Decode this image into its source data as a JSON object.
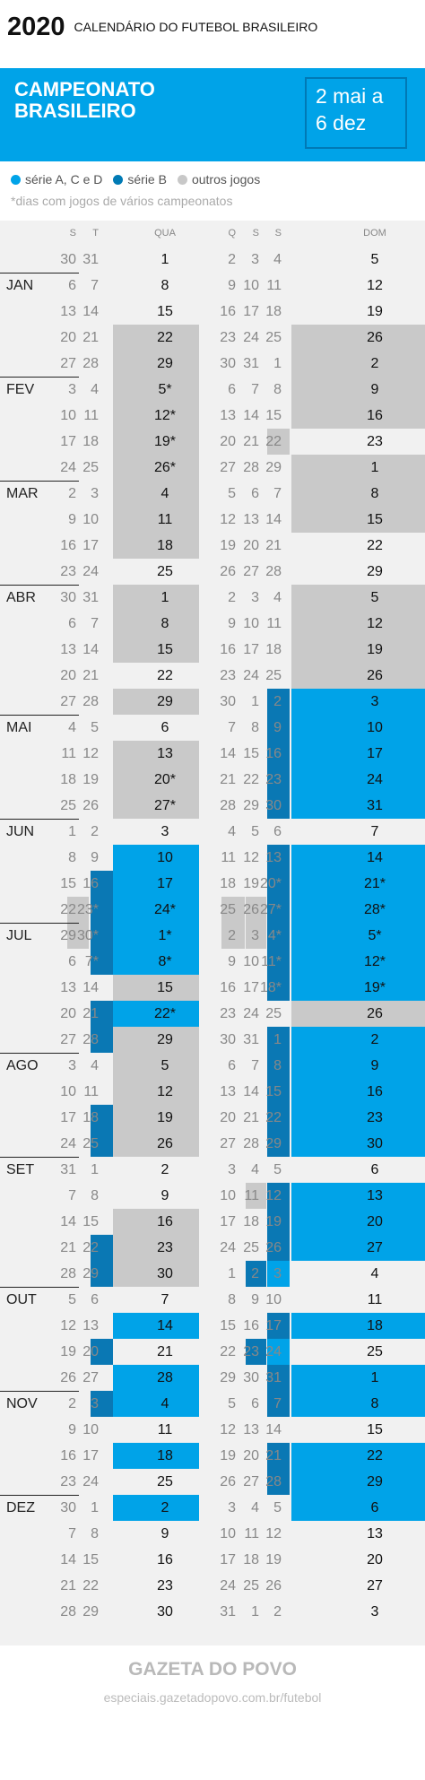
{
  "header": {
    "year": "2020",
    "title": "CALENDÁRIO DO FUTEBOL BRASILEIRO"
  },
  "banner": {
    "title": "CAMPEONATO\nBRASILEIRO",
    "dates": "2 mai a\n6 dez"
  },
  "legend": {
    "items": [
      {
        "label": "série A, C e D",
        "color": "#00a3e8"
      },
      {
        "label": "série B",
        "color": "#007bb5"
      },
      {
        "label": "outros jogos",
        "color": "#c8c8c8"
      }
    ],
    "note": "*dias com jogos de vários campeonatos"
  },
  "colors": {
    "seriesACD": "#00a3e8",
    "seriesB": "#0a78b4",
    "others": "#c9c9c9",
    "grid": "#f1f1f1"
  },
  "day_headers": [
    "S",
    "T",
    "QUA",
    "Q",
    "S",
    "S",
    "DOM"
  ],
  "months": [
    "JAN",
    "FEV",
    "MAR",
    "ABR",
    "MAI",
    "JUN",
    "JUL",
    "AGO",
    "SET",
    "OUT",
    "NOV",
    "DEZ"
  ],
  "weeks": [
    {
      "d": [
        "30",
        "31",
        "1",
        "2",
        "3",
        "4",
        "5"
      ]
    },
    {
      "m": "JAN",
      "d": [
        "6",
        "7",
        "8",
        "9",
        "10",
        "11",
        "12"
      ]
    },
    {
      "d": [
        "13",
        "14",
        "15",
        "16",
        "17",
        "18",
        "19"
      ]
    },
    {
      "d": [
        "20",
        "21",
        "22",
        "23",
        "24",
        "25",
        "26"
      ],
      "o": [
        2,
        6
      ]
    },
    {
      "d": [
        "27",
        "28",
        "29",
        "30",
        "31",
        "1",
        "2"
      ],
      "o": [
        2,
        6
      ]
    },
    {
      "m": "FEV",
      "d": [
        "3",
        "4",
        "5*",
        "6",
        "7",
        "8",
        "9"
      ],
      "o": [
        2,
        6
      ]
    },
    {
      "d": [
        "10",
        "11",
        "12*",
        "13",
        "14",
        "15",
        "16"
      ],
      "o": [
        2,
        6
      ]
    },
    {
      "d": [
        "17",
        "18",
        "19*",
        "20",
        "21",
        "22",
        "23"
      ],
      "o": [
        2,
        5
      ]
    },
    {
      "d": [
        "24",
        "25",
        "26*",
        "27",
        "28",
        "29",
        "1"
      ],
      "o": [
        2,
        6
      ]
    },
    {
      "m": "MAR",
      "d": [
        "2",
        "3",
        "4",
        "5",
        "6",
        "7",
        "8"
      ],
      "o": [
        2,
        6
      ]
    },
    {
      "d": [
        "9",
        "10",
        "11",
        "12",
        "13",
        "14",
        "15"
      ],
      "o": [
        2,
        6
      ]
    },
    {
      "d": [
        "16",
        "17",
        "18",
        "19",
        "20",
        "21",
        "22"
      ],
      "o": [
        2
      ]
    },
    {
      "d": [
        "23",
        "24",
        "25",
        "26",
        "27",
        "28",
        "29"
      ]
    },
    {
      "m": "ABR",
      "d": [
        "30",
        "31",
        "1",
        "2",
        "3",
        "4",
        "5"
      ],
      "o": [
        2,
        6
      ]
    },
    {
      "d": [
        "6",
        "7",
        "8",
        "9",
        "10",
        "11",
        "12"
      ],
      "o": [
        2,
        6
      ]
    },
    {
      "d": [
        "13",
        "14",
        "15",
        "16",
        "17",
        "18",
        "19"
      ],
      "o": [
        2,
        6
      ]
    },
    {
      "d": [
        "20",
        "21",
        "22",
        "23",
        "24",
        "25",
        "26"
      ],
      "o": [
        6
      ]
    },
    {
      "d": [
        "27",
        "28",
        "29",
        "30",
        "1",
        "2",
        "3"
      ],
      "o": [
        2
      ],
      "b": [
        5
      ],
      "a": [
        6
      ]
    },
    {
      "m": "MAI",
      "d": [
        "4",
        "5",
        "6",
        "7",
        "8",
        "9",
        "10"
      ],
      "b": [
        5
      ],
      "a": [
        6
      ]
    },
    {
      "d": [
        "11",
        "12",
        "13",
        "14",
        "15",
        "16",
        "17"
      ],
      "o": [
        2
      ],
      "b": [
        5
      ],
      "a": [
        6
      ]
    },
    {
      "d": [
        "18",
        "19",
        "20*",
        "21",
        "22",
        "23",
        "24"
      ],
      "o": [
        2
      ],
      "b": [
        5
      ],
      "a": [
        6
      ]
    },
    {
      "d": [
        "25",
        "26",
        "27*",
        "28",
        "29",
        "30",
        "31"
      ],
      "o": [
        2
      ],
      "b": [
        5
      ],
      "a": [
        6
      ]
    },
    {
      "m": "JUN",
      "d": [
        "1",
        "2",
        "3",
        "4",
        "5",
        "6",
        "7"
      ]
    },
    {
      "d": [
        "8",
        "9",
        "10",
        "11",
        "12",
        "13",
        "14"
      ],
      "b": [
        5
      ],
      "a": [
        2,
        6
      ]
    },
    {
      "d": [
        "15",
        "16",
        "17",
        "18",
        "19",
        "20*",
        "21*"
      ],
      "b": [
        1,
        5
      ],
      "a": [
        2,
        6
      ]
    },
    {
      "d": [
        "22",
        "23*",
        "24*",
        "25",
        "26",
        "27*",
        "28*"
      ],
      "o": [
        0,
        3,
        4
      ],
      "b": [
        1,
        5
      ],
      "a": [
        2,
        6
      ]
    },
    {
      "m": "JUL",
      "d": [
        "29",
        "30*",
        "1*",
        "2",
        "3",
        "4*",
        "5*"
      ],
      "o": [
        0,
        3,
        4
      ],
      "b": [
        1,
        5
      ],
      "a": [
        2,
        6
      ]
    },
    {
      "d": [
        "6",
        "7*",
        "8*",
        "9",
        "10",
        "11*",
        "12*"
      ],
      "b": [
        1,
        5
      ],
      "a": [
        2,
        6
      ]
    },
    {
      "d": [
        "13",
        "14",
        "15",
        "16",
        "17",
        "18*",
        "19*"
      ],
      "o": [
        2
      ],
      "b": [
        5
      ],
      "a": [
        6
      ]
    },
    {
      "d": [
        "20",
        "21",
        "22*",
        "23",
        "24",
        "25",
        "26"
      ],
      "b": [
        1
      ],
      "a": [
        2
      ],
      "o": [
        6
      ]
    },
    {
      "d": [
        "27",
        "28",
        "29",
        "30",
        "31",
        "1",
        "2"
      ],
      "o": [
        2
      ],
      "b": [
        1,
        5
      ],
      "a": [
        6
      ]
    },
    {
      "m": "AGO",
      "d": [
        "3",
        "4",
        "5",
        "6",
        "7",
        "8",
        "9"
      ],
      "o": [
        2
      ],
      "b": [
        5
      ],
      "a": [
        6
      ]
    },
    {
      "d": [
        "10",
        "11",
        "12",
        "13",
        "14",
        "15",
        "16"
      ],
      "o": [
        2
      ],
      "b": [
        5
      ],
      "a": [
        6
      ]
    },
    {
      "d": [
        "17",
        "18",
        "19",
        "20",
        "21",
        "22",
        "23"
      ],
      "o": [
        2
      ],
      "b": [
        1,
        5
      ],
      "a": [
        6
      ]
    },
    {
      "d": [
        "24",
        "25",
        "26",
        "27",
        "28",
        "29",
        "30"
      ],
      "o": [
        2
      ],
      "b": [
        1,
        5
      ],
      "a": [
        6
      ]
    },
    {
      "m": "SET",
      "d": [
        "31",
        "1",
        "2",
        "3",
        "4",
        "5",
        "6"
      ]
    },
    {
      "d": [
        "7",
        "8",
        "9",
        "10",
        "11",
        "12",
        "13"
      ],
      "o": [
        4
      ],
      "b": [
        5
      ],
      "a": [
        6
      ]
    },
    {
      "d": [
        "14",
        "15",
        "16",
        "17",
        "18",
        "19",
        "20"
      ],
      "o": [
        2
      ],
      "b": [
        5
      ],
      "a": [
        6
      ]
    },
    {
      "d": [
        "21",
        "22",
        "23",
        "24",
        "25",
        "26",
        "27"
      ],
      "o": [
        2
      ],
      "b": [
        1,
        5
      ],
      "a": [
        6
      ]
    },
    {
      "d": [
        "28",
        "29",
        "30",
        "1",
        "2",
        "3",
        "4"
      ],
      "o": [
        2
      ],
      "b": [
        1,
        4
      ],
      "a": [
        5
      ]
    },
    {
      "m": "OUT",
      "d": [
        "5",
        "6",
        "7",
        "8",
        "9",
        "10",
        "11"
      ]
    },
    {
      "d": [
        "12",
        "13",
        "14",
        "15",
        "16",
        "17",
        "18"
      ],
      "a": [
        2,
        6
      ],
      "b": [
        5
      ]
    },
    {
      "d": [
        "19",
        "20",
        "21",
        "22",
        "23",
        "24",
        "25"
      ],
      "b": [
        1,
        4
      ],
      "a": [
        5
      ]
    },
    {
      "d": [
        "26",
        "27",
        "28",
        "29",
        "30",
        "31",
        "1"
      ],
      "a": [
        2,
        6
      ],
      "b": [
        5
      ]
    },
    {
      "m": "NOV",
      "d": [
        "2",
        "3",
        "4",
        "5",
        "6",
        "7",
        "8"
      ],
      "b": [
        1,
        5
      ],
      "a": [
        2,
        6
      ]
    },
    {
      "d": [
        "9",
        "10",
        "11",
        "12",
        "13",
        "14",
        "15"
      ]
    },
    {
      "d": [
        "16",
        "17",
        "18",
        "19",
        "20",
        "21",
        "22"
      ],
      "a": [
        2,
        6
      ],
      "b": [
        5
      ]
    },
    {
      "d": [
        "23",
        "24",
        "25",
        "26",
        "27",
        "28",
        "29"
      ],
      "a": [
        6
      ],
      "b": [
        5
      ]
    },
    {
      "m": "DEZ",
      "d": [
        "30",
        "1",
        "2",
        "3",
        "4",
        "5",
        "6"
      ],
      "a": [
        2,
        6
      ]
    },
    {
      "d": [
        "7",
        "8",
        "9",
        "10",
        "11",
        "12",
        "13"
      ]
    },
    {
      "d": [
        "14",
        "15",
        "16",
        "17",
        "18",
        "19",
        "20"
      ]
    },
    {
      "d": [
        "21",
        "22",
        "23",
        "24",
        "25",
        "26",
        "27"
      ]
    },
    {
      "d": [
        "28",
        "29",
        "30",
        "31",
        "1",
        "2",
        "3"
      ]
    }
  ],
  "footer": {
    "logo": "GAZETA DO POVO",
    "url": "especiais.gazetadopovo.com.br/futebol"
  }
}
